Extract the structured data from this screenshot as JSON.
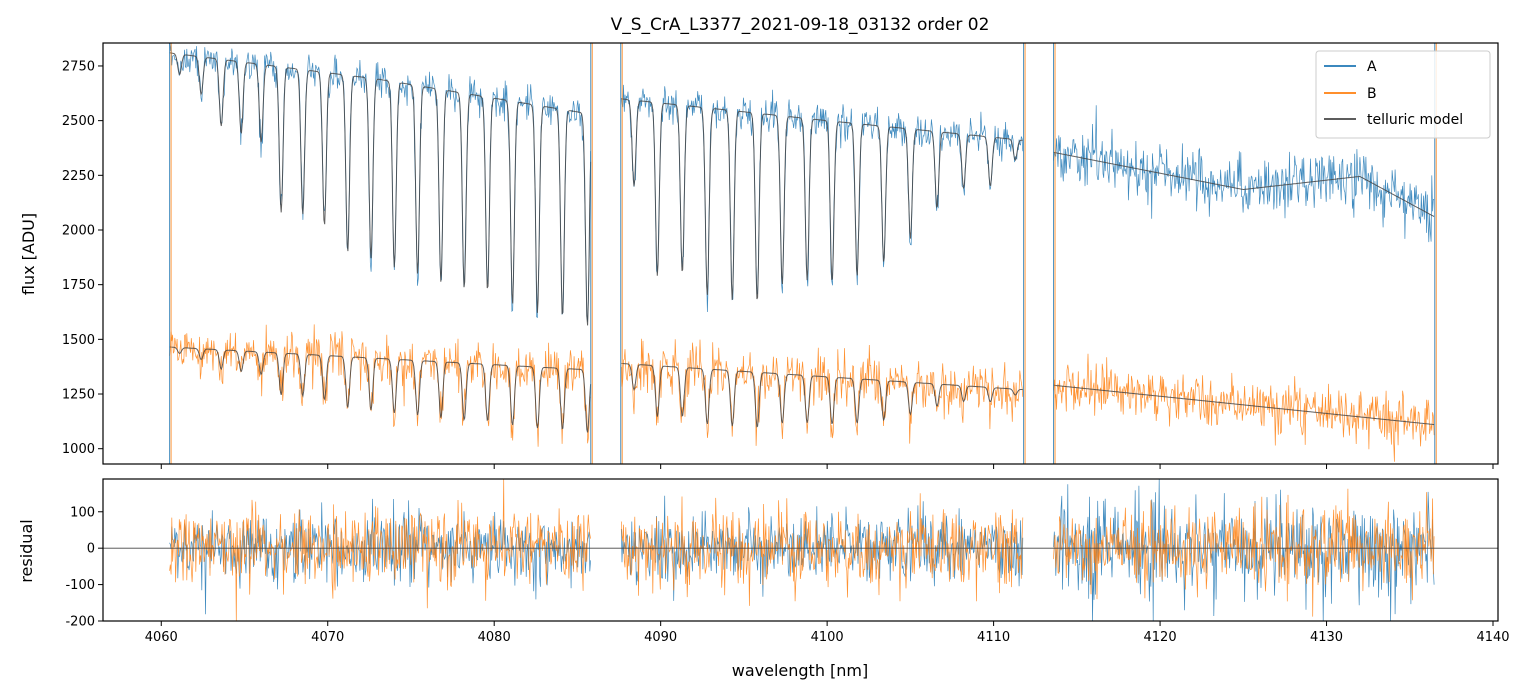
{
  "chart_data": [
    {
      "type": "line",
      "title": "V_S_CrA_L3377_2021-09-18_03132  order 02",
      "xlabel": "",
      "ylabel": "flux [ADU]",
      "xlim": [
        4056.5,
        4140.3
      ],
      "ylim": [
        930,
        2855
      ],
      "yticks": [
        1000,
        1250,
        1500,
        1750,
        2000,
        2250,
        2500,
        2750
      ],
      "xticks": [
        4060,
        4070,
        4080,
        4090,
        4100,
        4110,
        4120,
        4130,
        4140
      ],
      "legend": "top-right",
      "legend_entries": [
        "A",
        "B",
        "telluric model"
      ],
      "series": [
        {
          "name": "A",
          "color": "#1f77b4",
          "segments": [
            [
              4060.5,
              4085.8
            ],
            [
              4087.6,
              4111.8
            ],
            [
              4113.6,
              4136.5
            ]
          ],
          "continuum_approx": [
            [
              4060.5,
              2810
            ],
            [
              4073,
              2690
            ],
            [
              4085.8,
              2530
            ],
            [
              4087.6,
              2600
            ],
            [
              4100,
              2500
            ],
            [
              4111.8,
              2410
            ],
            [
              4113.6,
              2355
            ],
            [
              4125,
              2185
            ],
            [
              4132,
              2245
            ],
            [
              4136.5,
              2060
            ]
          ]
        },
        {
          "name": "B",
          "color": "#ff7f0e",
          "segments": [
            [
              4060.5,
              4085.8
            ],
            [
              4087.6,
              4111.8
            ],
            [
              4113.6,
              4136.5
            ]
          ],
          "continuum_approx": [
            [
              4060.5,
              1465
            ],
            [
              4085.8,
              1360
            ],
            [
              4087.6,
              1390
            ],
            [
              4111.8,
              1270
            ],
            [
              4113.6,
              1290
            ],
            [
              4136.5,
              1110
            ]
          ]
        },
        {
          "name": "telluric model",
          "color": "#444444"
        }
      ],
      "telluric_line_centers": [
        4061.1,
        4062.4,
        4063.6,
        4064.8,
        4066.0,
        4067.2,
        4068.5,
        4069.8,
        4071.2,
        4072.6,
        4074.0,
        4075.4,
        4076.8,
        4078.2,
        4079.6,
        4081.1,
        4082.6,
        4084.1,
        4085.6,
        4088.4,
        4089.8,
        4091.3,
        4092.8,
        4094.3,
        4095.8,
        4097.3,
        4098.8,
        4100.3,
        4101.8,
        4103.4,
        4105.0,
        4106.6,
        4108.2,
        4109.8,
        4111.3
      ],
      "telluric_line_depths_A": [
        2710,
        2620,
        2475,
        2440,
        2400,
        2080,
        2070,
        2020,
        1900,
        1870,
        1830,
        1800,
        1760,
        1730,
        1720,
        1660,
        1620,
        1600,
        1560,
        2200,
        1790,
        1800,
        1700,
        1680,
        1670,
        1750,
        1770,
        1760,
        1790,
        1850,
        1960,
        2100,
        2190,
        2200,
        2320
      ]
    },
    {
      "type": "line",
      "title": "",
      "xlabel": "wavelength [nm]",
      "ylabel": "residual",
      "xlim": [
        4056.5,
        4140.3
      ],
      "ylim": [
        -200,
        190
      ],
      "yticks": [
        -200,
        -100,
        0,
        100
      ],
      "xticks": [
        4060,
        4070,
        4080,
        4090,
        4100,
        4110,
        4120,
        4130,
        4140
      ],
      "zero_line": true,
      "series": [
        {
          "name": "A",
          "color": "#1f77b4",
          "noise_std_approx": 45
        },
        {
          "name": "B",
          "color": "#ff7f0e",
          "noise_std_approx": 55
        }
      ]
    }
  ]
}
